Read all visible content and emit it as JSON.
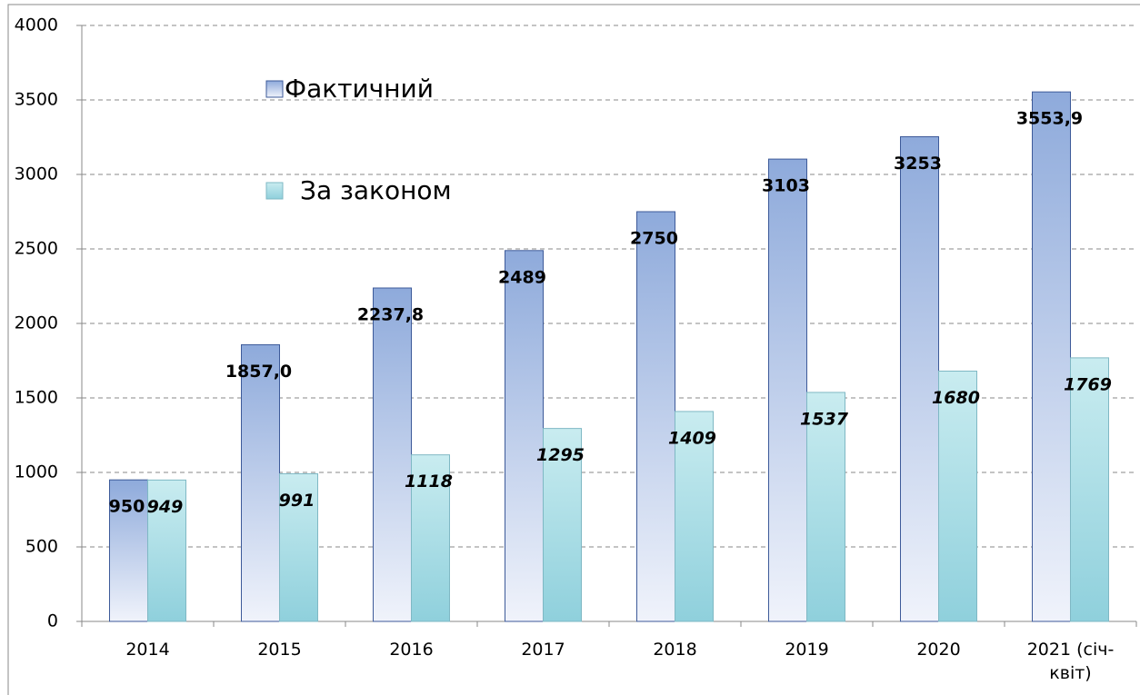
{
  "chart_data": {
    "type": "bar",
    "categories": [
      "2014",
      "2015",
      "2016",
      "2017",
      "2018",
      "2019",
      "2020",
      "2021 (січ-квіт)"
    ],
    "series": [
      {
        "name": "Фактичний",
        "color": "#8eaadb",
        "values": [
          950,
          1857.0,
          2237.8,
          2489,
          2750,
          3103,
          3253,
          3553.9
        ],
        "value_labels": [
          "950",
          "1857,0",
          "2237,8",
          "2489",
          "2750",
          "3103",
          "3253",
          "3553,9"
        ]
      },
      {
        "name": "За законом",
        "color": "#9fd8e0",
        "values": [
          949,
          991,
          1118,
          1295,
          1409,
          1537,
          1680,
          1769
        ]
      }
    ],
    "ylim": [
      0,
      4000
    ],
    "yticks": [
      0,
      500,
      1000,
      1500,
      2000,
      2500,
      3000,
      3500,
      4000
    ],
    "grid": true,
    "legend": "upper left"
  }
}
